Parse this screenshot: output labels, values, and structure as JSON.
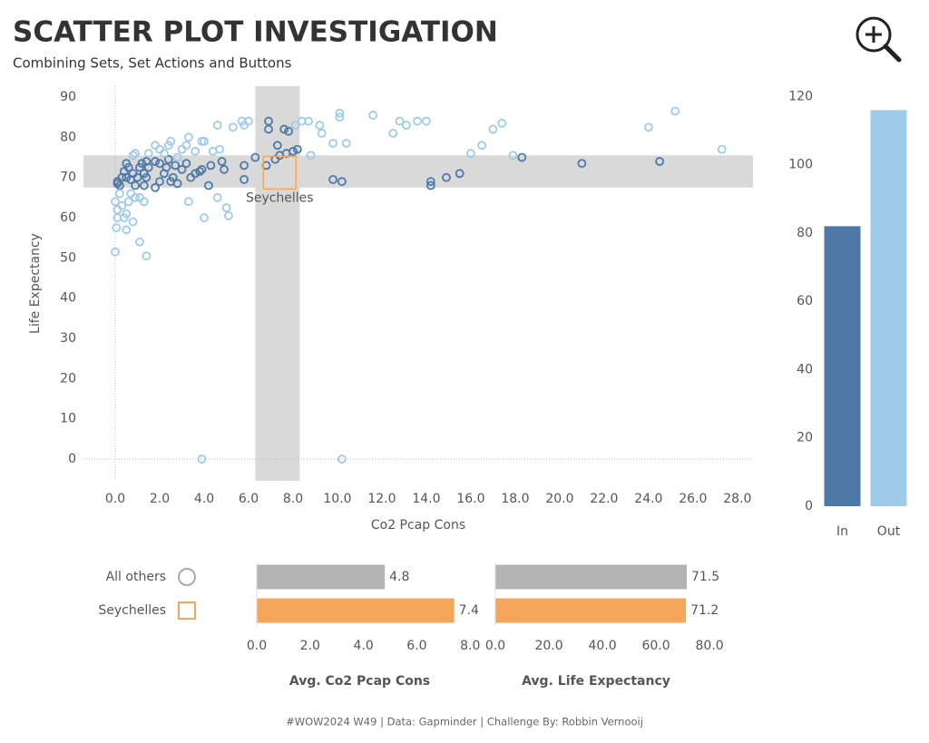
{
  "header": {
    "title": "SCATTER PLOT INVESTIGATION",
    "subtitle": "Combining Sets, Set Actions and Buttons"
  },
  "footer": "#WOW2024 W49 | Data: Gapminder | Challenge By: Robbin Vernooij",
  "chart_data": [
    {
      "type": "scatter",
      "xlabel": "Co2 Pcap Cons",
      "ylabel": "Life Expectancy",
      "xlim": [
        -1.43,
        28.7
      ],
      "ylim": [
        -5.4,
        92.7
      ],
      "xticks": [
        {
          "value": 0,
          "label": "0.0"
        },
        {
          "value": 2,
          "label": "2.0"
        },
        {
          "value": 4,
          "label": "4.0"
        },
        {
          "value": 6,
          "label": "6.0"
        },
        {
          "value": 8,
          "label": "8.0"
        },
        {
          "value": 10,
          "label": "10.0"
        },
        {
          "value": 12,
          "label": "12.0"
        },
        {
          "value": 14,
          "label": "14.0"
        },
        {
          "value": 16,
          "label": "16.0"
        },
        {
          "value": 18,
          "label": "18.0"
        },
        {
          "value": 20,
          "label": "20.0"
        },
        {
          "value": 22,
          "label": "22.0"
        },
        {
          "value": 24,
          "label": "24.0"
        },
        {
          "value": 26,
          "label": "26.0"
        },
        {
          "value": 28,
          "label": "28.0"
        }
      ],
      "yticks": [
        0,
        10,
        20,
        30,
        40,
        50,
        60,
        70,
        80,
        90
      ],
      "highlight_x": [
        6.3,
        8.3
      ],
      "highlight_y": [
        67.5,
        75.5
      ],
      "highlight_color": "#d9d9d9",
      "annotation": {
        "text": "Seychelles",
        "x": 7.4,
        "y": 71.2,
        "color": "#f4a65a"
      },
      "series": [
        {
          "name": "In",
          "color": "#4e79a7",
          "x": [
            0.1,
            0.1,
            0.2,
            0.3,
            0.4,
            0.5,
            0.6,
            0.5,
            0.7,
            0.8,
            0.9,
            1.0,
            1.1,
            1.2,
            1.3,
            1.3,
            1.4,
            1.4,
            1.5,
            1.8,
            1.8,
            2.0,
            2.0,
            2.2,
            2.3,
            2.4,
            2.5,
            2.6,
            2.7,
            2.8,
            3.0,
            3.2,
            3.4,
            3.6,
            3.8,
            3.9,
            4.2,
            4.3,
            4.8,
            4.9,
            5.8,
            5.8,
            6.3,
            6.8,
            6.9,
            6.9,
            7.3,
            7.2,
            7.4,
            7.6,
            7.7,
            7.8,
            8.0,
            8.2,
            9.8,
            10.2,
            14.2,
            14.2,
            14.9,
            15.5,
            18.3,
            21.0,
            24.5
          ],
          "values": [
            69,
            68.5,
            68,
            70,
            71.5,
            73.5,
            72.5,
            70,
            69.5,
            71,
            68,
            70,
            72.5,
            73.5,
            71,
            68,
            74,
            70,
            72.5,
            74,
            67.5,
            73.5,
            69,
            71,
            72.5,
            74.5,
            69,
            70,
            73,
            68.5,
            72,
            73.5,
            70,
            71,
            71.5,
            72,
            68,
            73,
            74,
            72,
            73,
            69.5,
            75,
            73,
            84,
            82,
            78,
            74.5,
            75.5,
            82,
            76,
            81.5,
            76.5,
            77,
            69.5,
            69,
            69,
            68,
            70,
            71,
            75,
            73.5,
            74
          ]
        },
        {
          "name": "Out",
          "color": "#a0cbe8",
          "x": [
            0.0,
            0.05,
            0.1,
            0.0,
            0.1,
            0.2,
            0.3,
            0.4,
            0.5,
            0.5,
            0.6,
            0.7,
            0.8,
            0.9,
            1.1,
            1.1,
            1.3,
            1.4,
            1.5,
            1.8,
            2.0,
            2.2,
            2.4,
            2.5,
            2.8,
            3.0,
            3.2,
            3.3,
            3.3,
            3.6,
            3.9,
            4.0,
            4.0,
            4.4,
            4.6,
            4.7,
            4.6,
            5.0,
            5.1,
            5.3,
            5.7,
            5.8,
            6.0,
            8.1,
            8.4,
            8.7,
            8.8,
            9.2,
            9.3,
            9.8,
            10.1,
            10.1,
            10.4,
            11.6,
            12.5,
            12.8,
            13.1,
            13.6,
            14.0,
            16.0,
            16.5,
            17.0,
            17.4,
            17.9,
            24.0,
            25.2,
            27.3,
            3.9,
            10.2,
            0.8,
            0.9
          ],
          "values": [
            51.5,
            57.5,
            60,
            64,
            62,
            66,
            63,
            60,
            61,
            57,
            64,
            66,
            59,
            65,
            65,
            54,
            64,
            50.5,
            76,
            78,
            77,
            76,
            78,
            79,
            75,
            77,
            78,
            80,
            64,
            76.5,
            79,
            79,
            60,
            76.5,
            83,
            77,
            65,
            62.5,
            60.5,
            82.5,
            84,
            83,
            84,
            83,
            84,
            84,
            75.5,
            83,
            81,
            78.5,
            86,
            85,
            78.5,
            85.5,
            81,
            84,
            83,
            84,
            84,
            76,
            78,
            82,
            83.5,
            75.5,
            82.5,
            86.5,
            77,
            0,
            0,
            75.5,
            76
          ]
        }
      ]
    },
    {
      "type": "bar",
      "categories": [
        "In",
        "Out"
      ],
      "values": [
        82,
        116
      ],
      "colors": [
        "#4e79a7",
        "#a0cbe8"
      ],
      "ylim": [
        0,
        123
      ],
      "yticks": [
        0,
        20,
        40,
        60,
        80,
        100,
        120
      ]
    },
    {
      "type": "hbar",
      "categories": [
        "All others",
        "Seychelles"
      ],
      "colors": [
        "#b4b4b4",
        "#f4a65a"
      ],
      "markers": [
        "circle",
        "square"
      ],
      "panels": [
        {
          "xlabel": "Avg. Co2 Pcap Cons",
          "values": [
            4.8,
            7.4
          ],
          "xlim": [
            0,
            8.4
          ],
          "xticks": [
            {
              "value": 0,
              "label": "0.0"
            },
            {
              "value": 2,
              "label": "2.0"
            },
            {
              "value": 4,
              "label": "4.0"
            },
            {
              "value": 6,
              "label": "6.0"
            },
            {
              "value": 8,
              "label": "8.0"
            }
          ]
        },
        {
          "xlabel": "Avg. Life Expectancy",
          "values": [
            71.5,
            71.2
          ],
          "xlim": [
            0,
            82
          ],
          "xticks": [
            {
              "value": 0,
              "label": "0.0"
            },
            {
              "value": 20,
              "label": "20.0"
            },
            {
              "value": 40,
              "label": "40.0"
            },
            {
              "value": 60,
              "label": "60.0"
            },
            {
              "value": 80,
              "label": "80.0"
            }
          ]
        }
      ]
    }
  ]
}
